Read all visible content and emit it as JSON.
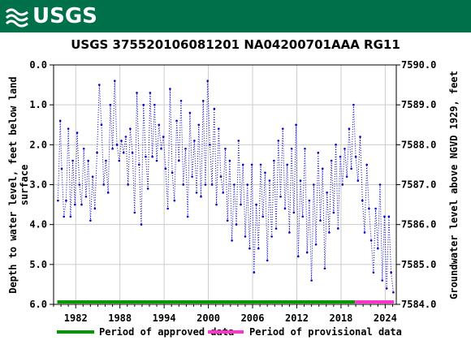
{
  "header": {
    "logo_text": "USGS",
    "logo_icon": "usgs-wave-logo-icon",
    "color": "#00704a"
  },
  "chart_data": {
    "type": "scatter",
    "title": "USGS 375520106081201 NA04200701AAA  RG11",
    "ylabel_left": [
      "Depth to water level, feet below land",
      "surface"
    ],
    "ylabel_right": "Groundwater level above NGVD 1929, feet",
    "x_range": [
      1979.0,
      2025.5
    ],
    "xticks": [
      1982,
      1988,
      1994,
      2000,
      2006,
      2012,
      2018,
      2024
    ],
    "xtick_labels": [
      "1982",
      "1988",
      "1994",
      "2000",
      "2006",
      "2012",
      "2018",
      "2024"
    ],
    "y_left_range": [
      0.0,
      6.0
    ],
    "y_left_inverted": true,
    "y_left_ticks": [
      0.0,
      1.0,
      2.0,
      3.0,
      4.0,
      5.0,
      6.0
    ],
    "y_left_tick_labels": [
      "0.0",
      "1.0",
      "2.0",
      "3.0",
      "4.0",
      "5.0",
      "6.0"
    ],
    "y_right_range": [
      7584.0,
      7590.0
    ],
    "y_right_ticks": [
      7584.0,
      7585.0,
      7586.0,
      7587.0,
      7588.0,
      7589.0,
      7590.0
    ],
    "y_right_tick_labels": [
      "7584.0",
      "7585.0",
      "7586.0",
      "7587.0",
      "7588.0",
      "7589.0",
      "7590.0"
    ],
    "grid": true,
    "series_color": "#0000cc",
    "approved_color": "#009900",
    "provisional_color": "#ff33cc",
    "approved_period": [
      1979.5,
      2019.9
    ],
    "provisional_period": [
      2019.9,
      2025.2
    ],
    "legend": [
      {
        "label": "Period of approved data",
        "color": "#009900"
      },
      {
        "label": "Period of provisional data",
        "color": "#ff33cc"
      }
    ],
    "points": [
      [
        1979.6,
        3.4
      ],
      [
        1979.9,
        1.4
      ],
      [
        1980.1,
        2.6
      ],
      [
        1980.4,
        3.8
      ],
      [
        1980.7,
        3.4
      ],
      [
        1981.0,
        1.6
      ],
      [
        1981.3,
        3.8
      ],
      [
        1981.6,
        2.4
      ],
      [
        1981.9,
        3.5
      ],
      [
        1982.2,
        1.7
      ],
      [
        1982.5,
        3.0
      ],
      [
        1982.8,
        3.5
      ],
      [
        1983.1,
        2.1
      ],
      [
        1983.4,
        3.3
      ],
      [
        1983.7,
        2.4
      ],
      [
        1984.0,
        3.9
      ],
      [
        1984.3,
        2.8
      ],
      [
        1984.6,
        3.6
      ],
      [
        1984.9,
        2.2
      ],
      [
        1985.2,
        0.5
      ],
      [
        1985.5,
        1.5
      ],
      [
        1985.8,
        3.0
      ],
      [
        1986.1,
        2.4
      ],
      [
        1986.4,
        3.2
      ],
      [
        1986.7,
        1.0
      ],
      [
        1987.0,
        2.1
      ],
      [
        1987.3,
        0.4
      ],
      [
        1987.6,
        2.0
      ],
      [
        1987.9,
        2.4
      ],
      [
        1988.2,
        1.9
      ],
      [
        1988.5,
        2.2
      ],
      [
        1988.8,
        1.8
      ],
      [
        1989.1,
        3.0
      ],
      [
        1989.4,
        1.6
      ],
      [
        1989.7,
        2.2
      ],
      [
        1990.0,
        3.7
      ],
      [
        1990.3,
        0.7
      ],
      [
        1990.6,
        2.5
      ],
      [
        1990.9,
        4.0
      ],
      [
        1991.2,
        1.0
      ],
      [
        1991.5,
        2.3
      ],
      [
        1991.8,
        3.1
      ],
      [
        1992.1,
        0.7
      ],
      [
        1992.4,
        2.3
      ],
      [
        1992.7,
        1.0
      ],
      [
        1993.0,
        2.4
      ],
      [
        1993.3,
        1.5
      ],
      [
        1993.6,
        2.1
      ],
      [
        1993.9,
        1.8
      ],
      [
        1994.2,
        2.6
      ],
      [
        1994.5,
        3.6
      ],
      [
        1994.8,
        0.6
      ],
      [
        1995.1,
        2.7
      ],
      [
        1995.4,
        3.4
      ],
      [
        1995.7,
        1.4
      ],
      [
        1996.0,
        2.4
      ],
      [
        1996.3,
        0.9
      ],
      [
        1996.6,
        3.0
      ],
      [
        1996.9,
        2.1
      ],
      [
        1997.2,
        3.8
      ],
      [
        1997.5,
        1.2
      ],
      [
        1997.8,
        2.8
      ],
      [
        1998.1,
        1.9
      ],
      [
        1998.4,
        3.2
      ],
      [
        1998.7,
        1.5
      ],
      [
        1999.0,
        3.3
      ],
      [
        1999.3,
        0.9
      ],
      [
        1999.6,
        3.0
      ],
      [
        1999.9,
        0.4
      ],
      [
        2000.2,
        2.0
      ],
      [
        2000.5,
        3.0
      ],
      [
        2000.8,
        1.1
      ],
      [
        2001.1,
        3.5
      ],
      [
        2001.4,
        1.6
      ],
      [
        2001.7,
        2.8
      ],
      [
        2002.0,
        3.2
      ],
      [
        2002.3,
        2.1
      ],
      [
        2002.6,
        3.9
      ],
      [
        2002.9,
        2.4
      ],
      [
        2003.2,
        4.4
      ],
      [
        2003.5,
        3.0
      ],
      [
        2003.8,
        4.0
      ],
      [
        2004.1,
        1.9
      ],
      [
        2004.4,
        3.5
      ],
      [
        2004.7,
        2.5
      ],
      [
        2005.0,
        4.3
      ],
      [
        2005.3,
        3.0
      ],
      [
        2005.6,
        4.6
      ],
      [
        2005.9,
        2.5
      ],
      [
        2006.2,
        5.2
      ],
      [
        2006.5,
        3.5
      ],
      [
        2006.8,
        4.6
      ],
      [
        2007.1,
        2.5
      ],
      [
        2007.4,
        3.8
      ],
      [
        2007.7,
        2.7
      ],
      [
        2008.0,
        4.9
      ],
      [
        2008.3,
        2.9
      ],
      [
        2008.6,
        4.3
      ],
      [
        2008.9,
        2.4
      ],
      [
        2009.2,
        4.1
      ],
      [
        2009.5,
        1.9
      ],
      [
        2009.8,
        3.3
      ],
      [
        2010.1,
        1.6
      ],
      [
        2010.4,
        3.6
      ],
      [
        2010.7,
        2.5
      ],
      [
        2011.0,
        4.2
      ],
      [
        2011.3,
        2.1
      ],
      [
        2011.6,
        3.7
      ],
      [
        2011.9,
        1.5
      ],
      [
        2012.2,
        4.8
      ],
      [
        2012.5,
        2.9
      ],
      [
        2012.8,
        3.8
      ],
      [
        2013.1,
        2.1
      ],
      [
        2013.4,
        4.7
      ],
      [
        2013.7,
        3.4
      ],
      [
        2014.0,
        5.4
      ],
      [
        2014.3,
        3.0
      ],
      [
        2014.6,
        4.5
      ],
      [
        2014.9,
        2.2
      ],
      [
        2015.2,
        3.9
      ],
      [
        2015.5,
        2.6
      ],
      [
        2015.8,
        5.1
      ],
      [
        2016.1,
        3.2
      ],
      [
        2016.4,
        4.2
      ],
      [
        2016.7,
        2.4
      ],
      [
        2017.0,
        3.7
      ],
      [
        2017.3,
        2.0
      ],
      [
        2017.6,
        4.1
      ],
      [
        2017.9,
        2.3
      ],
      [
        2018.2,
        3.0
      ],
      [
        2018.5,
        2.1
      ],
      [
        2018.8,
        2.8
      ],
      [
        2019.1,
        1.6
      ],
      [
        2019.4,
        2.6
      ],
      [
        2019.7,
        1.0
      ],
      [
        2020.0,
        2.3
      ],
      [
        2020.3,
        2.9
      ],
      [
        2020.6,
        1.8
      ],
      [
        2020.9,
        3.4
      ],
      [
        2021.2,
        4.2
      ],
      [
        2021.5,
        2.5
      ],
      [
        2021.8,
        3.6
      ],
      [
        2022.1,
        4.4
      ],
      [
        2022.4,
        5.2
      ],
      [
        2022.7,
        3.6
      ],
      [
        2023.0,
        4.6
      ],
      [
        2023.3,
        3.0
      ],
      [
        2023.6,
        5.4
      ],
      [
        2023.9,
        3.8
      ],
      [
        2024.2,
        5.6
      ],
      [
        2024.5,
        3.8
      ],
      [
        2024.8,
        5.2
      ],
      [
        2025.1,
        5.7
      ]
    ]
  }
}
